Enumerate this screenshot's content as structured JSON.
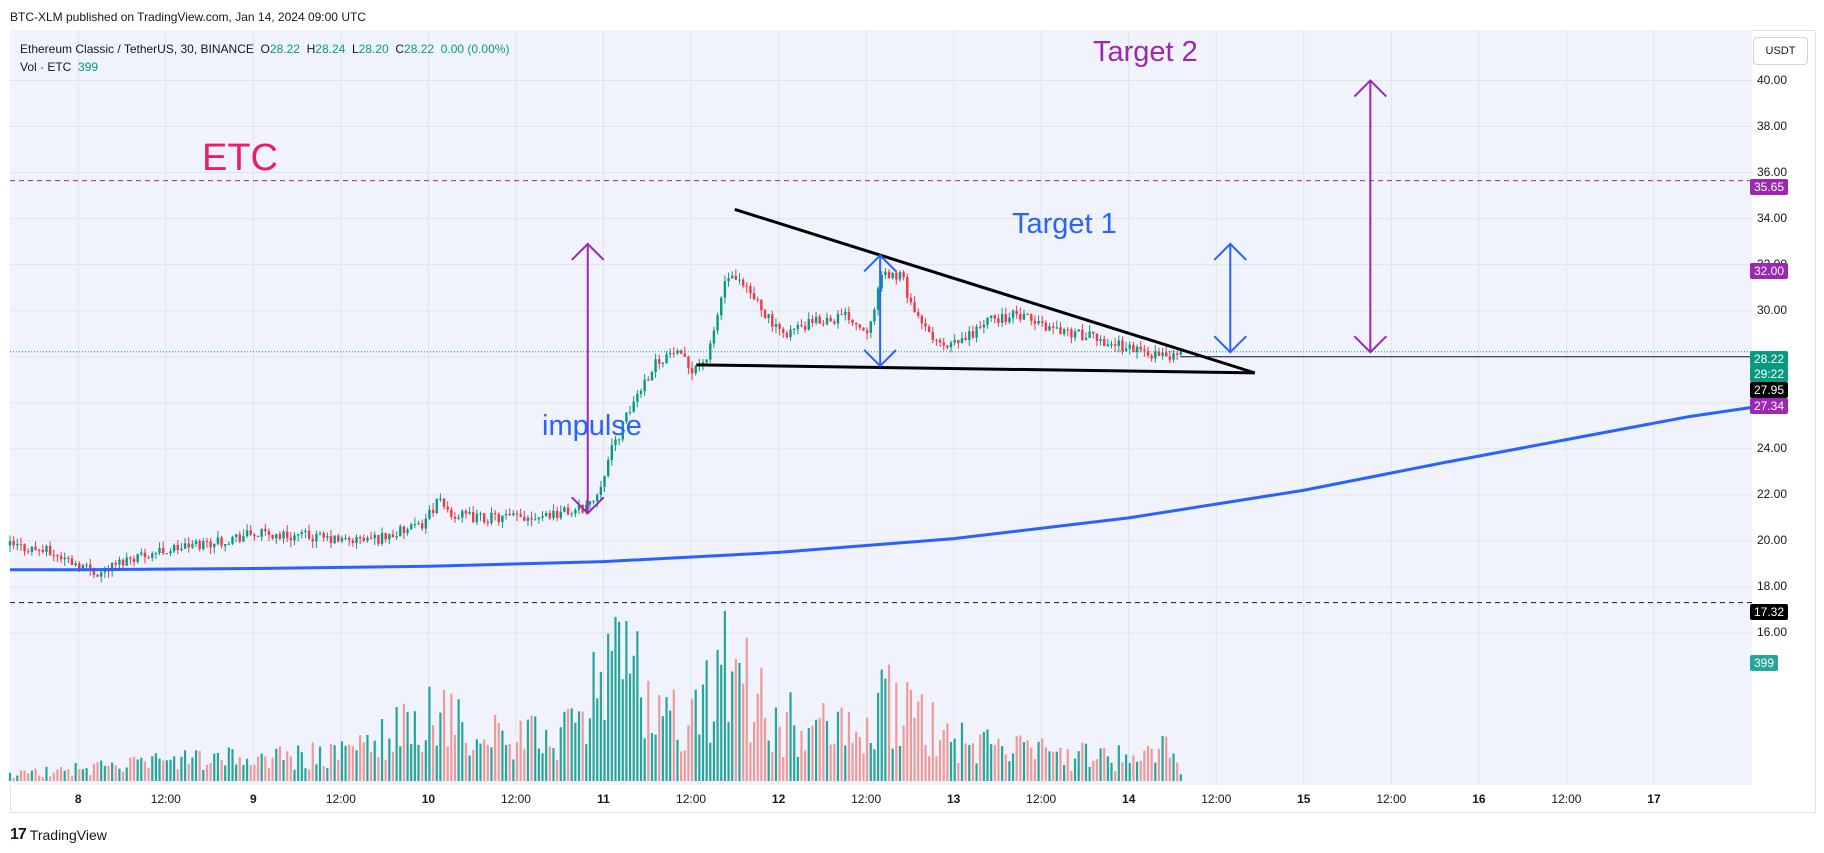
{
  "header": {
    "published": "BTC-XLM published on TradingView.com, Jan 14, 2024 09:00 UTC"
  },
  "legend": {
    "symbol": "Ethereum Classic / TetherUS, 30, BINANCE",
    "o_label": "O",
    "o_value": "28.22",
    "h_label": "H",
    "h_value": "28.24",
    "l_label": "L",
    "l_value": "28.20",
    "c_label": "C",
    "c_value": "28.22",
    "change": "0.00 (0.00%)",
    "vol_label": "Vol · ETC",
    "vol_value": "399"
  },
  "currency": "USDT",
  "annotations": {
    "etc": "ETC",
    "impulse": "impulse",
    "target1": "Target 1",
    "target2": "Target 2"
  },
  "price_tags": {
    "t1": "35.65",
    "t2": "32.00",
    "t3": "28.22",
    "t4": "29:22",
    "t5": "27.95",
    "t6": "27.34",
    "t7": "17.32",
    "t8": "399"
  },
  "footer": {
    "logo_mark": "17",
    "brand": "TradingView"
  },
  "colors": {
    "up": "#089981",
    "down": "#f23645",
    "vol_up": "#26a69a",
    "vol_down": "#ef9a9a",
    "pane_bg": "#f0f3fc",
    "ma_line": "#2962ff",
    "purple": "#9c27b0",
    "blue": "#2962ff",
    "etc_label": "#e91e63",
    "black_tag": "#000000"
  },
  "chart_data": {
    "type": "candlestick",
    "title": "Ethereum Classic / TetherUS, 30, BINANCE",
    "yaxis": {
      "ticks": [
        "16.00",
        "18.00",
        "20.00",
        "22.00",
        "24.00",
        "26.00",
        "28.00",
        "30.00",
        "32.00",
        "34.00",
        "36.00",
        "38.00",
        "40.00"
      ],
      "range": [
        15,
        42
      ]
    },
    "xaxis": {
      "ticks": [
        {
          "label": "8",
          "day": 0.0
        },
        {
          "label": "12:00",
          "day": 0.5
        },
        {
          "label": "9",
          "day": 1.0
        },
        {
          "label": "12:00",
          "day": 1.5
        },
        {
          "label": "10",
          "day": 2.0
        },
        {
          "label": "12:00",
          "day": 2.5
        },
        {
          "label": "11",
          "day": 3.0
        },
        {
          "label": "12:00",
          "day": 3.5
        },
        {
          "label": "12",
          "day": 4.0
        },
        {
          "label": "12:00",
          "day": 4.5
        },
        {
          "label": "13",
          "day": 5.0
        },
        {
          "label": "12:00",
          "day": 5.5
        },
        {
          "label": "14",
          "day": 6.0
        },
        {
          "label": "12:00",
          "day": 6.5
        },
        {
          "label": "15",
          "day": 7.0
        },
        {
          "label": "12:00",
          "day": 7.5
        },
        {
          "label": "16",
          "day": 8.0
        },
        {
          "label": "12:00",
          "day": 8.5
        },
        {
          "label": "17",
          "day": 9.0
        }
      ],
      "range": [
        -0.39,
        9.56
      ]
    },
    "price_path": [
      [
        -0.39,
        19.8
      ],
      [
        -0.2,
        19.6
      ],
      [
        0.0,
        19.0
      ],
      [
        0.12,
        18.6
      ],
      [
        0.3,
        19.3
      ],
      [
        0.5,
        19.6
      ],
      [
        0.8,
        20.0
      ],
      [
        1.0,
        20.3
      ],
      [
        1.3,
        20.2
      ],
      [
        1.5,
        20.0
      ],
      [
        1.7,
        20.1
      ],
      [
        1.8,
        20.3
      ],
      [
        1.95,
        20.6
      ],
      [
        2.05,
        21.7
      ],
      [
        2.15,
        21.1
      ],
      [
        2.3,
        21.0
      ],
      [
        2.5,
        21.0
      ],
      [
        2.7,
        21.2
      ],
      [
        2.85,
        21.3
      ],
      [
        2.95,
        21.8
      ],
      [
        3.05,
        24.0
      ],
      [
        3.2,
        26.5
      ],
      [
        3.3,
        27.8
      ],
      [
        3.4,
        28.2
      ],
      [
        3.5,
        27.5
      ],
      [
        3.6,
        28.0
      ],
      [
        3.7,
        31.5
      ],
      [
        3.8,
        31.0
      ],
      [
        3.9,
        30.2
      ],
      [
        4.0,
        29.0
      ],
      [
        4.1,
        29.2
      ],
      [
        4.25,
        29.6
      ],
      [
        4.4,
        29.8
      ],
      [
        4.5,
        29.1
      ],
      [
        4.6,
        31.6
      ],
      [
        4.7,
        31.5
      ],
      [
        4.8,
        29.5
      ],
      [
        4.95,
        28.3
      ],
      [
        5.05,
        28.7
      ],
      [
        5.2,
        29.6
      ],
      [
        5.35,
        29.8
      ],
      [
        5.5,
        29.4
      ],
      [
        5.7,
        29.0
      ],
      [
        5.9,
        28.6
      ],
      [
        6.05,
        28.3
      ],
      [
        6.2,
        28.0
      ],
      [
        6.3,
        28.2
      ]
    ],
    "volume_profile": [
      [
        -0.39,
        30
      ],
      [
        0.5,
        90
      ],
      [
        1.5,
        120
      ],
      [
        2.0,
        300
      ],
      [
        2.5,
        180
      ],
      [
        2.9,
        260
      ],
      [
        3.0,
        600
      ],
      [
        3.3,
        380
      ],
      [
        3.5,
        250
      ],
      [
        3.7,
        560
      ],
      [
        3.95,
        300
      ],
      [
        4.5,
        200
      ],
      [
        4.6,
        380
      ],
      [
        4.8,
        280
      ],
      [
        5.0,
        180
      ],
      [
        5.6,
        120
      ],
      [
        6.0,
        110
      ],
      [
        6.2,
        150
      ],
      [
        6.3,
        60
      ]
    ],
    "moving_average": [
      [
        -0.39,
        18.75
      ],
      [
        0.0,
        18.75
      ],
      [
        1.0,
        18.8
      ],
      [
        2.0,
        18.9
      ],
      [
        3.0,
        19.1
      ],
      [
        4.0,
        19.5
      ],
      [
        5.0,
        20.1
      ],
      [
        6.0,
        21.0
      ],
      [
        7.0,
        22.2
      ],
      [
        7.8,
        23.4
      ],
      [
        8.5,
        24.4
      ],
      [
        9.2,
        25.4
      ],
      [
        9.56,
        25.8
      ]
    ],
    "horizontal_lines": [
      {
        "price": 35.65,
        "style": "dashed",
        "color": "#9c27b0"
      },
      {
        "price": 17.32,
        "style": "dashed",
        "color": "#131722"
      },
      {
        "price": 28.22,
        "style": "dotted",
        "color": "#089981"
      }
    ],
    "wedge": {
      "upper": [
        [
          3.75,
          34.4
        ],
        [
          6.72,
          27.3
        ]
      ],
      "lower": [
        [
          3.53,
          27.65
        ],
        [
          6.72,
          27.3
        ]
      ]
    },
    "arrows": [
      {
        "name": "impulse",
        "day": 2.91,
        "from": 21.2,
        "to": 32.9,
        "color": "#9c27b0"
      },
      {
        "name": "flag-pole",
        "day": 4.58,
        "from": 27.6,
        "to": 32.4,
        "color": "#2962ff"
      },
      {
        "name": "target1",
        "day": 6.58,
        "from": 28.2,
        "to": 32.9,
        "color": "#2962ff"
      },
      {
        "name": "target2",
        "day": 7.38,
        "from": 28.2,
        "to": 40.0,
        "color": "#9c27b0"
      }
    ]
  }
}
